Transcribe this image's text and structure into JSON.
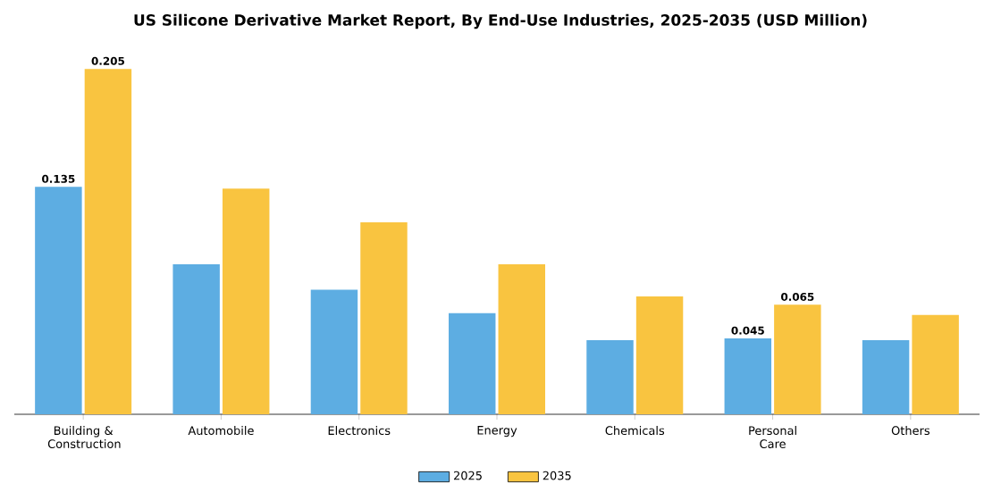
{
  "chart_data": {
    "type": "bar",
    "title": "US Silicone Derivative Market Report, By End-Use Industries, 2025-2035 (USD Million)",
    "categories": [
      "Building & Construction",
      "Automobile",
      "Electronics",
      "Energy",
      "Chemicals",
      "Personal Care",
      "Others"
    ],
    "series": [
      {
        "name": "2025",
        "color": "#5dade2",
        "values": [
          0.135,
          0.089,
          0.074,
          0.06,
          0.044,
          0.045,
          0.044
        ],
        "value_labels": [
          "0.135",
          null,
          null,
          null,
          null,
          "0.045",
          null
        ]
      },
      {
        "name": "2035",
        "color": "#f9c440",
        "values": [
          0.205,
          0.134,
          0.114,
          0.089,
          0.07,
          0.065,
          0.059
        ],
        "value_labels": [
          "0.205",
          null,
          null,
          null,
          null,
          "0.065",
          null
        ]
      }
    ],
    "legend": "bottom"
  }
}
